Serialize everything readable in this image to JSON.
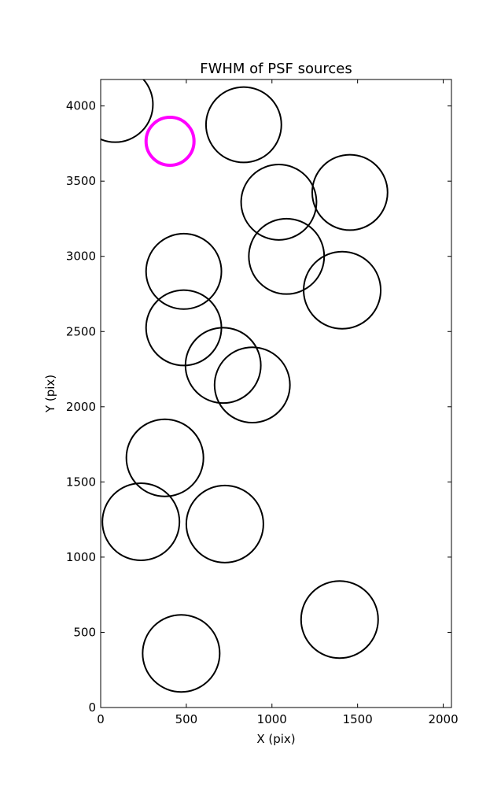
{
  "chart_data": {
    "type": "scatter",
    "title": "FWHM of PSF sources",
    "xlabel": "X (pix)",
    "ylabel": "Y (pix)",
    "xlim": [
      0,
      2048
    ],
    "ylim": [
      0,
      4176
    ],
    "xticks": [
      0,
      500,
      1000,
      1500,
      2000
    ],
    "yticks": [
      0,
      500,
      1000,
      1500,
      2000,
      2500,
      3000,
      3500,
      4000
    ],
    "grid": false,
    "marker": "circle",
    "normal_color": "#000000",
    "highlight_color": "#ff00ff",
    "circles": [
      {
        "x": 85,
        "y": 4010,
        "r": 220,
        "highlight": false
      },
      {
        "x": 405,
        "y": 3765,
        "r": 140,
        "highlight": true
      },
      {
        "x": 835,
        "y": 3875,
        "r": 220,
        "highlight": false
      },
      {
        "x": 1040,
        "y": 3360,
        "r": 220,
        "highlight": false
      },
      {
        "x": 1455,
        "y": 3425,
        "r": 220,
        "highlight": false
      },
      {
        "x": 485,
        "y": 2900,
        "r": 220,
        "highlight": false
      },
      {
        "x": 1085,
        "y": 3000,
        "r": 220,
        "highlight": false
      },
      {
        "x": 1410,
        "y": 2775,
        "r": 225,
        "highlight": false
      },
      {
        "x": 485,
        "y": 2525,
        "r": 220,
        "highlight": false
      },
      {
        "x": 715,
        "y": 2275,
        "r": 220,
        "highlight": false
      },
      {
        "x": 885,
        "y": 2145,
        "r": 220,
        "highlight": false
      },
      {
        "x": 375,
        "y": 1660,
        "r": 225,
        "highlight": false
      },
      {
        "x": 235,
        "y": 1235,
        "r": 225,
        "highlight": false
      },
      {
        "x": 725,
        "y": 1220,
        "r": 225,
        "highlight": false
      },
      {
        "x": 1395,
        "y": 585,
        "r": 225,
        "highlight": false
      },
      {
        "x": 470,
        "y": 360,
        "r": 225,
        "highlight": false
      }
    ]
  }
}
